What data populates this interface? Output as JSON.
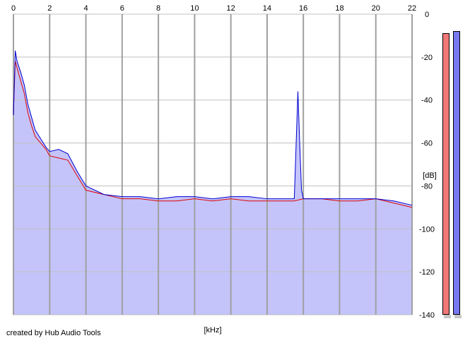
{
  "credit": "created by Hub Audio Tools",
  "chart_data": {
    "type": "line",
    "xlabel": "[kHz]",
    "ylabel": "[dB]",
    "xlim": [
      0,
      22
    ],
    "ylim": [
      -140,
      0
    ],
    "x_ticks": [
      0,
      2,
      4,
      6,
      8,
      10,
      12,
      14,
      16,
      18,
      20,
      22
    ],
    "y_ticks": [
      0,
      -20,
      -40,
      -60,
      -80,
      -100,
      -120,
      -140
    ],
    "grid": true,
    "fill_color": "#c4c4fb",
    "series": [
      {
        "color": "#e00000",
        "x": [
          0,
          0.1,
          0.2,
          0.4,
          0.6,
          0.8,
          1.0,
          1.2,
          1.5,
          1.8,
          2.0,
          2.5,
          3.0,
          3.5,
          4.0,
          5.0,
          6.0,
          7.0,
          8.0,
          9.0,
          10.0,
          11.0,
          12.0,
          13.0,
          14.0,
          15.0,
          15.5,
          16.0,
          17.0,
          18.0,
          19.0,
          20.0,
          21.0,
          22.0
        ],
        "values": [
          -47,
          -22,
          -25,
          -31,
          -37,
          -46,
          -52,
          -57,
          -60,
          -63,
          -66,
          -67,
          -68,
          -75,
          -82,
          -84,
          -86,
          -86,
          -87,
          -87,
          -86,
          -87,
          -86,
          -87,
          -87,
          -87,
          -87,
          -86,
          -86,
          -87,
          -87,
          -86,
          -88,
          -90
        ]
      },
      {
        "color": "#0000d0",
        "x": [
          0,
          0.1,
          0.2,
          0.4,
          0.6,
          0.8,
          1.0,
          1.2,
          1.5,
          1.8,
          2.0,
          2.5,
          3.0,
          3.5,
          4.0,
          5.0,
          6.0,
          7.0,
          8.0,
          9.0,
          10.0,
          11.0,
          12.0,
          13.0,
          14.0,
          15.0,
          15.5,
          15.7,
          15.8,
          15.9,
          16.0,
          17.0,
          18.0,
          19.0,
          20.0,
          21.0,
          22.0
        ],
        "values": [
          -47,
          -17,
          -22,
          -27,
          -33,
          -42,
          -48,
          -54,
          -58,
          -62,
          -64,
          -63,
          -65,
          -73,
          -80,
          -84,
          -85,
          -85,
          -86,
          -85,
          -85,
          -86,
          -85,
          -85,
          -86,
          -86,
          -86,
          -36,
          -60,
          -82,
          -86,
          -86,
          -86,
          -86,
          -86,
          -87,
          -89
        ]
      }
    ],
    "level_meters": [
      {
        "color": "#f07878",
        "level_db": -9
      },
      {
        "color": "#7878f0",
        "level_db": -8
      }
    ]
  }
}
